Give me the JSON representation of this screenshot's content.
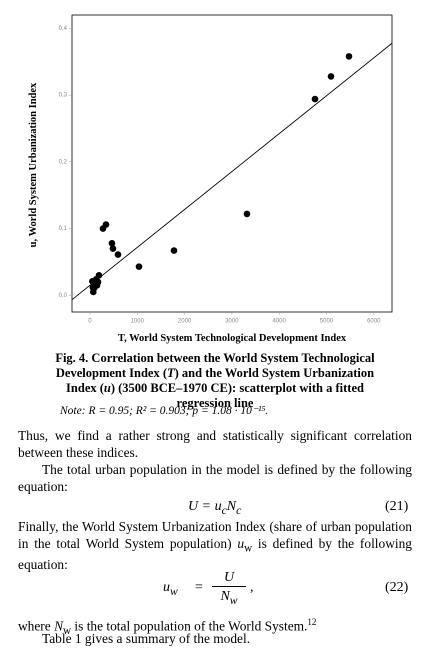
{
  "chart_data": {
    "type": "scatter",
    "xlabel": "T, World System Technological Development Index",
    "ylabel": "u, World System Urbanization Index",
    "x": [
      5476,
      5095,
      4757,
      3319,
      1776,
      1036,
      592,
      486,
      465,
      338,
      275,
      190,
      130,
      110,
      90,
      70,
      50,
      60,
      150,
      170
    ],
    "y": [
      0.358,
      0.328,
      0.294,
      0.122,
      0.067,
      0.043,
      0.061,
      0.07,
      0.078,
      0.106,
      0.1,
      0.03,
      0.024,
      0.018,
      0.011,
      0.005,
      0.021,
      0.012,
      0.015,
      0.02
    ],
    "color": "#000000",
    "fit": {
      "slope": 5.68e-05,
      "intercept": 0.015
    },
    "xlim": [
      -380,
      6385
    ],
    "ylim": [
      -0.025,
      0.42
    ],
    "xticks": [
      0,
      1000,
      2000,
      3000,
      4000,
      5000,
      6000
    ],
    "yticks": [
      {
        "value": 0,
        "label": "0,0"
      },
      {
        "value": 0.1,
        "label": "0,1"
      },
      {
        "value": 0.2,
        "label": "0,2"
      },
      {
        "value": 0.3,
        "label": "0,3"
      },
      {
        "value": 0.4,
        "label": "0,4"
      }
    ]
  },
  "caption": [
    "Fig. 4. Correlation between the World System Technological Development Index (",
    "T",
    ") and the World System Urbanization Index (",
    "u",
    ") (3500 BCE–1970 CE): scatterplot with a fitted regression line"
  ],
  "note": {
    "label": "Note:",
    "text": "R = 0.95; R² = 0.903; p = 1.08 · 10⁻¹⁵."
  },
  "paragraph_1": "Thus, we find a rather strong and statistically significant correlation between these indices.",
  "paragraph_2": "The total urban population in the model is defined by the following equation:",
  "equation_21": {
    "parts": [
      "U = ",
      "u",
      "c",
      "N",
      "c"
    ],
    "number": "(21)"
  },
  "paragraph_3": [
    "Finally, the World System Urbanization Index (share of urban population in the total World System population) ",
    "u",
    "w",
    " is defined by the following equation:"
  ],
  "equation_22": {
    "parts": [
      "u",
      "w",
      "=",
      "U",
      "N",
      "w",
      ","
    ],
    "number": "(22)"
  },
  "paragraph_4": [
    "where ",
    "N",
    "w",
    " is the total population of the World System.",
    "12"
  ],
  "paragraph_5": "Table 1 gives a summary of the model."
}
